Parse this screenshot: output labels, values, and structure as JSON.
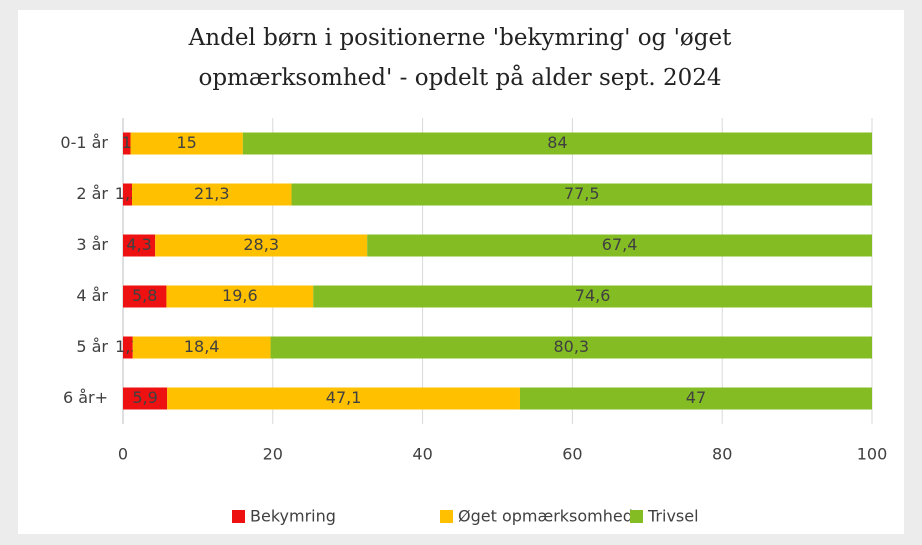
{
  "chart_data": {
    "type": "stacked-bar-horizontal",
    "title": "Andel børn i positionerne 'bekymring' og 'øget opmærksomhed' - opdelt på alder sept. 2024",
    "categories": [
      "0-1 år",
      "2 år",
      "3 år",
      "4 år",
      "5 år",
      "6 år+"
    ],
    "series": [
      {
        "name": "Bekymring",
        "color": "#ee1111",
        "values": [
          1,
          1.2,
          4.3,
          5.8,
          1.3,
          5.9
        ],
        "value_labels": [
          "1",
          "1,2",
          "4,3",
          "5,8",
          "1,3",
          "5,9"
        ]
      },
      {
        "name": "Øget opmærksomhed",
        "color": "#ffc000",
        "values": [
          15,
          21.3,
          28.3,
          19.6,
          18.4,
          47.1
        ],
        "value_labels": [
          "15",
          "21,3",
          "28,3",
          "19,6",
          "18,4",
          "47,1"
        ]
      },
      {
        "name": "Trivsel",
        "color": "#84bc24",
        "values": [
          84,
          77.5,
          67.4,
          74.6,
          80.3,
          47
        ],
        "value_labels": [
          "84",
          "77,5",
          "67,4",
          "74,6",
          "80,3",
          "47"
        ]
      }
    ],
    "xlim": [
      0,
      100
    ],
    "xticks": [
      0,
      20,
      40,
      60,
      80,
      100
    ],
    "grid": true,
    "legend": "bottom"
  }
}
